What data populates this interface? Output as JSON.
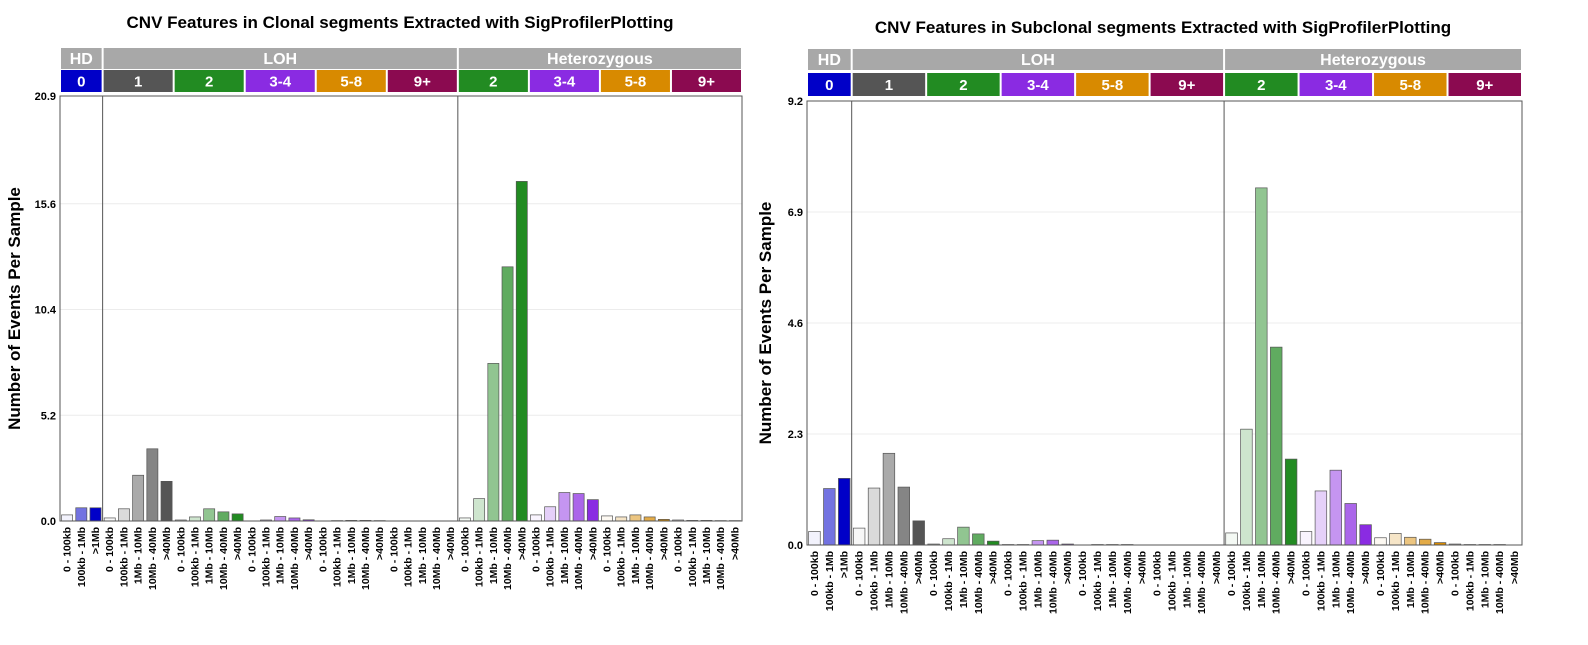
{
  "chart_data": [
    {
      "type": "bar",
      "title": "CNV Features in Clonal segments Extracted with SigProfilerPlotting",
      "ylabel": "Number of Events Per Sample",
      "xlabel": "",
      "ylim": [
        0,
        20.9
      ],
      "yticks": [
        "0.0",
        "5.2",
        "10.4",
        "15.6",
        "20.9"
      ],
      "grid": "horizontal",
      "groups": [
        {
          "label": "HD",
          "color": "#a8a8a8",
          "subgroups": [
            {
              "label": "0",
              "color": "#0000c8",
              "categories": [
                "0 - 100kb",
                "100kb - 1Mb",
                ">1Mb"
              ],
              "values": [
                0.3,
                0.65,
                0.65
              ]
            }
          ]
        },
        {
          "label": "LOH",
          "color": "#a8a8a8",
          "subgroups": [
            {
              "label": "1",
              "color": "#555555",
              "categories": [
                "0 - 100kb",
                "100kb - 1Mb",
                "1Mb - 10Mb",
                "10Mb - 40Mb",
                ">40Mb"
              ],
              "values": [
                0.15,
                0.6,
                2.25,
                3.55,
                1.95
              ]
            },
            {
              "label": "2",
              "color": "#228b22",
              "categories": [
                "0 - 100kb",
                "100kb - 1Mb",
                "1Mb - 10Mb",
                "10Mb - 40Mb",
                ">40Mb"
              ],
              "values": [
                0.05,
                0.2,
                0.6,
                0.45,
                0.35
              ]
            },
            {
              "label": "3-4",
              "color": "#8a2be2",
              "categories": [
                "0 - 100kb",
                "100kb - 1Mb",
                "1Mb - 10Mb",
                "10Mb - 40Mb",
                ">40Mb"
              ],
              "values": [
                0.0,
                0.05,
                0.22,
                0.15,
                0.06
              ]
            },
            {
              "label": "5-8",
              "color": "#d88a00",
              "categories": [
                "0 - 100kb",
                "100kb - 1Mb",
                "1Mb - 10Mb",
                "10Mb - 40Mb",
                ">40Mb"
              ],
              "values": [
                0.0,
                0.02,
                0.03,
                0.03,
                0.02
              ]
            },
            {
              "label": "9+",
              "color": "#8b0a50",
              "categories": [
                "0 - 100kb",
                "100kb - 1Mb",
                "1Mb - 10Mb",
                "10Mb - 40Mb",
                ">40Mb"
              ],
              "values": [
                0.0,
                0.01,
                0.01,
                0.01,
                0.01
              ]
            }
          ]
        },
        {
          "label": "Heterozygous",
          "color": "#a8a8a8",
          "subgroups": [
            {
              "label": "2",
              "color": "#228b22",
              "categories": [
                "0 - 100kb",
                "100kb - 1Mb",
                "1Mb - 10Mb",
                "10Mb - 40Mb",
                ">40Mb"
              ],
              "values": [
                0.15,
                1.1,
                7.75,
                12.5,
                16.7
              ]
            },
            {
              "label": "3-4",
              "color": "#8a2be2",
              "categories": [
                "0 - 100kb",
                "100kb - 1Mb",
                "1Mb - 10Mb",
                "10Mb - 40Mb",
                ">40Mb"
              ],
              "values": [
                0.3,
                0.7,
                1.4,
                1.35,
                1.05
              ]
            },
            {
              "label": "5-8",
              "color": "#d88a00",
              "categories": [
                "0 - 100kb",
                "100kb - 1Mb",
                "1Mb - 10Mb",
                "10Mb - 40Mb",
                ">40Mb"
              ],
              "values": [
                0.25,
                0.2,
                0.3,
                0.2,
                0.08
              ]
            },
            {
              "label": "9+",
              "color": "#8b0a50",
              "categories": [
                "0 - 100kb",
                "100kb - 1Mb",
                "1Mb - 10Mb",
                "10Mb - 40Mb",
                ">40Mb"
              ],
              "values": [
                0.05,
                0.03,
                0.03,
                0.02,
                0.02
              ]
            }
          ]
        }
      ]
    },
    {
      "type": "bar",
      "title": "CNV Features in Subclonal segments Extracted with SigProfilerPlotting",
      "ylabel": "Number of Events Per Sample",
      "xlabel": "",
      "ylim": [
        0,
        9.2
      ],
      "yticks": [
        "0.0",
        "2.3",
        "4.6",
        "6.9",
        "9.2"
      ],
      "grid": "horizontal",
      "groups": [
        {
          "label": "HD",
          "color": "#a8a8a8",
          "subgroups": [
            {
              "label": "0",
              "color": "#0000c8",
              "categories": [
                "0 - 100kb",
                "100kb - 1Mb",
                ">1Mb"
              ],
              "values": [
                0.28,
                1.17,
                1.38
              ]
            }
          ]
        },
        {
          "label": "LOH",
          "color": "#a8a8a8",
          "subgroups": [
            {
              "label": "1",
              "color": "#555555",
              "categories": [
                "0 - 100kb",
                "100kb - 1Mb",
                "1Mb - 10Mb",
                "10Mb - 40Mb",
                ">40Mb"
              ],
              "values": [
                0.35,
                1.18,
                1.9,
                1.2,
                0.5
              ]
            },
            {
              "label": "2",
              "color": "#228b22",
              "categories": [
                "0 - 100kb",
                "100kb - 1Mb",
                "1Mb - 10Mb",
                "10Mb - 40Mb",
                ">40Mb"
              ],
              "values": [
                0.02,
                0.13,
                0.37,
                0.23,
                0.08
              ]
            },
            {
              "label": "3-4",
              "color": "#8a2be2",
              "categories": [
                "0 - 100kb",
                "100kb - 1Mb",
                "1Mb - 10Mb",
                "10Mb - 40Mb",
                ">40Mb"
              ],
              "values": [
                0.01,
                0.01,
                0.09,
                0.1,
                0.02
              ]
            },
            {
              "label": "5-8",
              "color": "#d88a00",
              "categories": [
                "0 - 100kb",
                "100kb - 1Mb",
                "1Mb - 10Mb",
                "10Mb - 40Mb",
                ">40Mb"
              ],
              "values": [
                0.0,
                0.01,
                0.01,
                0.01,
                0.0
              ]
            },
            {
              "label": "9+",
              "color": "#8b0a50",
              "categories": [
                "0 - 100kb",
                "100kb - 1Mb",
                "1Mb - 10Mb",
                "10Mb - 40Mb",
                ">40Mb"
              ],
              "values": [
                0.0,
                0.0,
                0.0,
                0.0,
                0.0
              ]
            }
          ]
        },
        {
          "label": "Heterozygous",
          "color": "#a8a8a8",
          "subgroups": [
            {
              "label": "2",
              "color": "#228b22",
              "categories": [
                "0 - 100kb",
                "100kb - 1Mb",
                "1Mb - 10Mb",
                "10Mb - 40Mb",
                ">40Mb"
              ],
              "values": [
                0.25,
                2.4,
                7.4,
                4.1,
                1.78
              ]
            },
            {
              "label": "3-4",
              "color": "#8a2be2",
              "categories": [
                "0 - 100kb",
                "100kb - 1Mb",
                "1Mb - 10Mb",
                "10Mb - 40Mb",
                ">40Mb"
              ],
              "values": [
                0.28,
                1.12,
                1.55,
                0.86,
                0.42
              ]
            },
            {
              "label": "5-8",
              "color": "#d88a00",
              "categories": [
                "0 - 100kb",
                "100kb - 1Mb",
                "1Mb - 10Mb",
                "10Mb - 40Mb",
                ">40Mb"
              ],
              "values": [
                0.15,
                0.24,
                0.16,
                0.12,
                0.05
              ]
            },
            {
              "label": "9+",
              "color": "#8b0a50",
              "categories": [
                "0 - 100kb",
                "100kb - 1Mb",
                "1Mb - 10Mb",
                "10Mb - 40Mb",
                ">40Mb"
              ],
              "values": [
                0.02,
                0.01,
                0.01,
                0.01,
                0.0
              ]
            }
          ]
        }
      ]
    }
  ]
}
